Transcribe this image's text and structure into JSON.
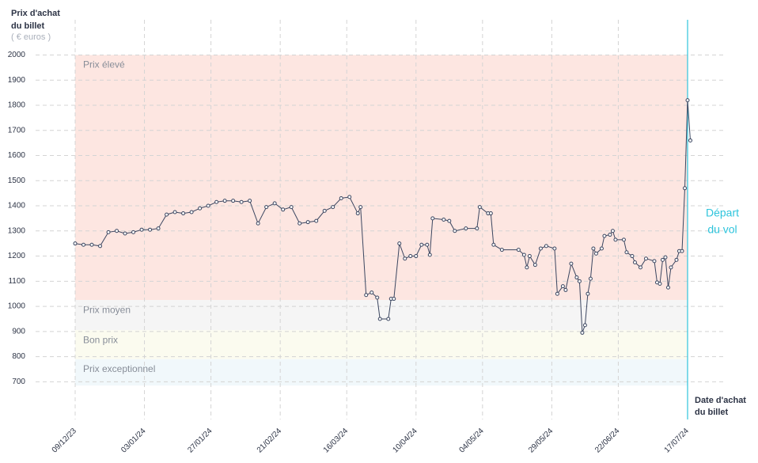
{
  "chart_data": {
    "type": "line",
    "y_label": [
      "Prix d'achat",
      "du billet"
    ],
    "y_unit": "( € euros )",
    "x_label": [
      "Date d'achat",
      "du billet"
    ],
    "x": [
      "09/12/23",
      "12/12/23",
      "15/12/23",
      "18/12/23",
      "21/12/23",
      "24/12/23",
      "27/12/23",
      "30/12/23",
      "02/01/24",
      "05/01/24",
      "08/01/24",
      "11/01/24",
      "14/01/24",
      "17/01/24",
      "20/01/24",
      "23/01/24",
      "26/01/24",
      "29/01/24",
      "01/02/24",
      "04/02/24",
      "07/02/24",
      "10/02/24",
      "13/02/24",
      "16/02/24",
      "19/02/24",
      "22/02/24",
      "25/02/24",
      "28/02/24",
      "02/03/24",
      "05/03/24",
      "08/03/24",
      "11/03/24",
      "14/03/24",
      "17/03/24",
      "20/03/24",
      "21/03/24",
      "23/03/24",
      "25/03/24",
      "27/03/24",
      "28/03/24",
      "31/03/24",
      "01/04/24",
      "02/04/24",
      "04/04/24",
      "06/04/24",
      "08/04/24",
      "10/04/24",
      "12/04/24",
      "14/04/24",
      "15/04/24",
      "16/04/24",
      "20/04/24",
      "22/04/24",
      "24/04/24",
      "28/04/24",
      "02/05/24",
      "03/05/24",
      "06/05/24",
      "07/05/24",
      "08/05/24",
      "11/05/24",
      "17/05/24",
      "19/05/24",
      "20/05/24",
      "21/05/24",
      "23/05/24",
      "25/05/24",
      "27/05/24",
      "30/05/24",
      "31/05/24",
      "02/06/24",
      "03/06/24",
      "05/06/24",
      "07/06/24",
      "08/06/24",
      "09/06/24",
      "10/06/24",
      "11/06/24",
      "12/06/24",
      "13/06/24",
      "14/06/24",
      "16/06/24",
      "17/06/24",
      "19/06/24",
      "20/06/24",
      "21/06/24",
      "24/06/24",
      "25/06/24",
      "27/06/24",
      "28/06/24",
      "30/06/24",
      "02/07/24",
      "05/07/24",
      "06/07/24",
      "07/07/24",
      "08/07/24",
      "09/07/24",
      "10/07/24",
      "11/07/24",
      "13/07/24",
      "14/07/24",
      "15/07/24",
      "16/07/24",
      "17/07/24",
      "18/07/24"
    ],
    "values": [
      1250,
      1245,
      1245,
      1240,
      1295,
      1300,
      1290,
      1295,
      1305,
      1305,
      1310,
      1365,
      1375,
      1370,
      1375,
      1390,
      1400,
      1415,
      1420,
      1420,
      1415,
      1420,
      1330,
      1395,
      1410,
      1385,
      1395,
      1330,
      1335,
      1340,
      1380,
      1395,
      1430,
      1435,
      1370,
      1395,
      1045,
      1055,
      1035,
      950,
      950,
      1030,
      1030,
      1250,
      1190,
      1200,
      1200,
      1245,
      1245,
      1205,
      1350,
      1345,
      1340,
      1300,
      1310,
      1310,
      1395,
      1370,
      1370,
      1245,
      1225,
      1225,
      1205,
      1155,
      1200,
      1165,
      1230,
      1240,
      1230,
      1050,
      1080,
      1065,
      1170,
      1115,
      1100,
      895,
      925,
      1050,
      1110,
      1230,
      1210,
      1230,
      1280,
      1285,
      1300,
      1265,
      1265,
      1215,
      1200,
      1175,
      1155,
      1190,
      1180,
      1095,
      1090,
      1185,
      1195,
      1075,
      1155,
      1185,
      1220,
      1220,
      1470,
      1820,
      1660
    ],
    "color": "#3b4660",
    "ylim": [
      550,
      2140
    ],
    "yticks": [
      700,
      800,
      900,
      1000,
      1100,
      1200,
      1300,
      1400,
      1500,
      1600,
      1700,
      1800,
      1900,
      2000
    ],
    "xticks": [
      "09/12/23",
      "03/01/24",
      "27/01/24",
      "21/02/24",
      "16/03/24",
      "10/04/24",
      "04/05/24",
      "29/05/24",
      "22/06/24",
      "17/07/24"
    ],
    "grid": true,
    "bands": [
      {
        "label": "Prix élevé",
        "from": 1025,
        "to": 2000,
        "color": "#fde6e1"
      },
      {
        "label": "Prix moyen",
        "from": 905,
        "to": 1025,
        "color": "#f5f5f5"
      },
      {
        "label": "Bon prix",
        "from": 790,
        "to": 905,
        "color": "#fbfbef"
      },
      {
        "label": "Prix exceptionnel",
        "from": 685,
        "to": 790,
        "color": "#f1f8fb"
      }
    ],
    "departure": {
      "x": "17/07/24",
      "text": [
        "Départ",
        "du vol"
      ],
      "color": "#2ec4dc"
    }
  }
}
